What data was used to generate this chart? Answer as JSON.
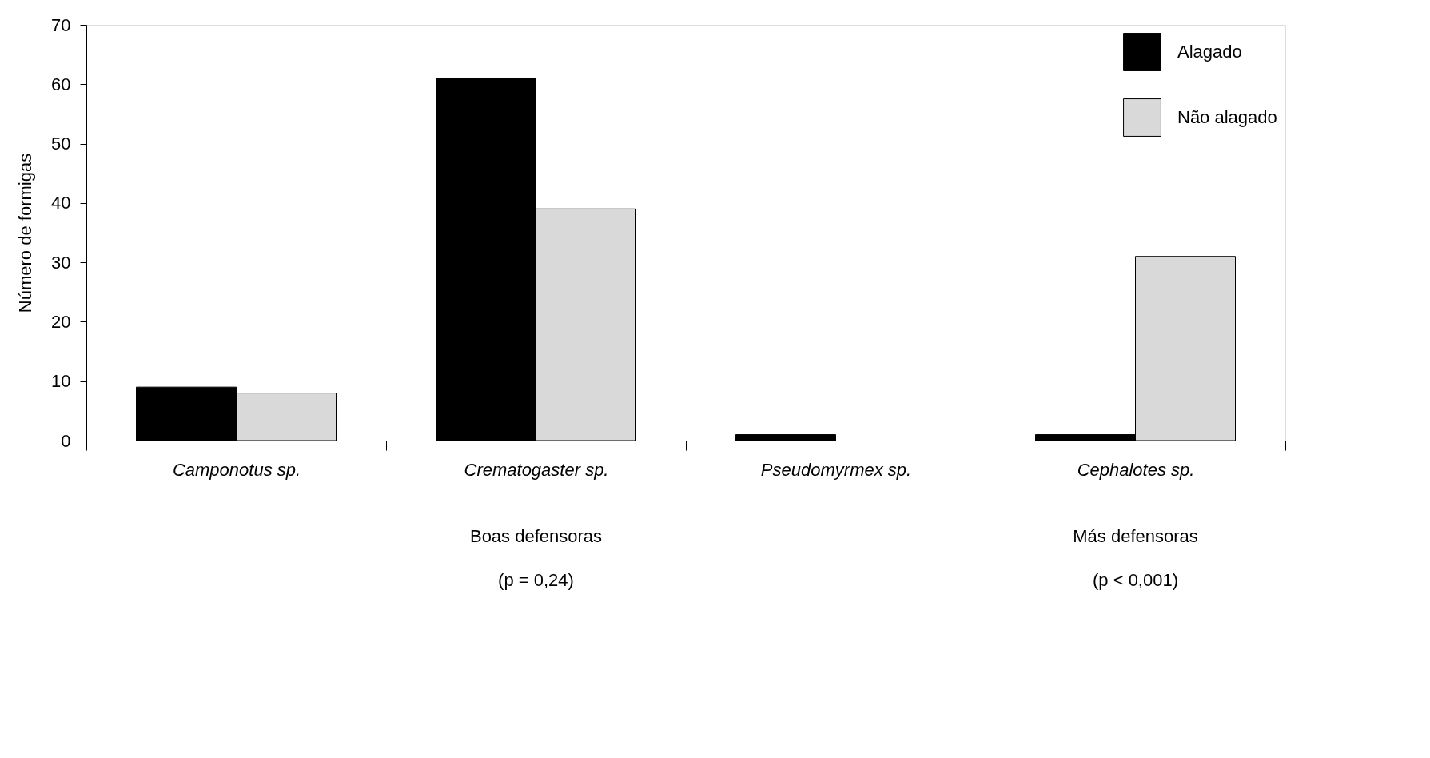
{
  "chart_data": {
    "type": "bar",
    "ylabel": "Número de formigas",
    "categories": [
      "Camponotus sp.",
      "Crematogaster sp.",
      "Pseudomyrmex sp.",
      "Cephalotes sp."
    ],
    "series": [
      {
        "name": "Alagado",
        "color": "#000000",
        "values": [
          9,
          61,
          1,
          1
        ]
      },
      {
        "name": "Não alagado",
        "color": "#d9d9d9",
        "values": [
          8,
          39,
          null,
          31
        ]
      }
    ],
    "ylim": [
      0,
      70
    ],
    "yticks": [
      0,
      10,
      20,
      30,
      40,
      50,
      60,
      70
    ],
    "grid": false,
    "legend": "top right",
    "annotations": [
      "Boas defensoras",
      "(p = 0,24)",
      "Más defensoras",
      "(p < 0,001)"
    ]
  }
}
